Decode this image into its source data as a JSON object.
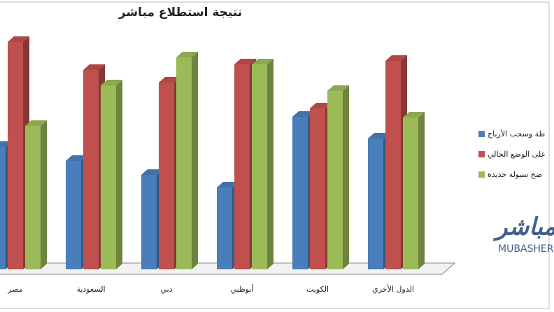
{
  "chart_data": {
    "type": "bar3d",
    "title": "نتيجة استطلاع مباشر",
    "categories": [
      "مصر",
      "السعودية",
      "دبي",
      "أبوظبي",
      "الكويت",
      "الدول الأخري"
    ],
    "series": [
      {
        "name": "ظة وسحب الأرباح",
        "color": "#4a7ebb",
        "values": [
          175,
          155,
          135,
          117,
          218,
          187
        ]
      },
      {
        "name": "على الوضع الحالي",
        "color": "#c0504d",
        "values": [
          325,
          285,
          267,
          293,
          230,
          298
        ]
      },
      {
        "name": "ضخ سيولة جديدة",
        "color": "#9bbb59",
        "values": [
          205,
          263,
          303,
          293,
          255,
          217
        ]
      }
    ],
    "ylim": [
      0,
      340
    ],
    "logo": {
      "arabic": "مباشر",
      "latin": "MUBASHER"
    }
  }
}
